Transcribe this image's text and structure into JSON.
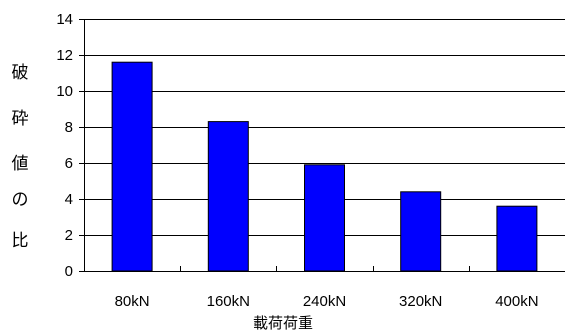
{
  "chart_data": {
    "type": "bar",
    "categories": [
      "80kN",
      "160kN",
      "240kN",
      "320kN",
      "400kN"
    ],
    "values": [
      11.6,
      8.3,
      5.9,
      4.4,
      3.6
    ],
    "ylabel": "破砕値の比",
    "ylabel_chars": [
      "破",
      "砕",
      "値",
      "の",
      "比"
    ],
    "xlabel": "載荷荷重",
    "ylim": [
      0,
      14
    ],
    "yticks": [
      0,
      2,
      4,
      6,
      8,
      10,
      12,
      14
    ],
    "grid": true,
    "legend": "none",
    "colors": {
      "bar_fill": "#0000ff",
      "bar_stroke": "#000000",
      "grid": "#000000",
      "axis": "#000000"
    }
  }
}
